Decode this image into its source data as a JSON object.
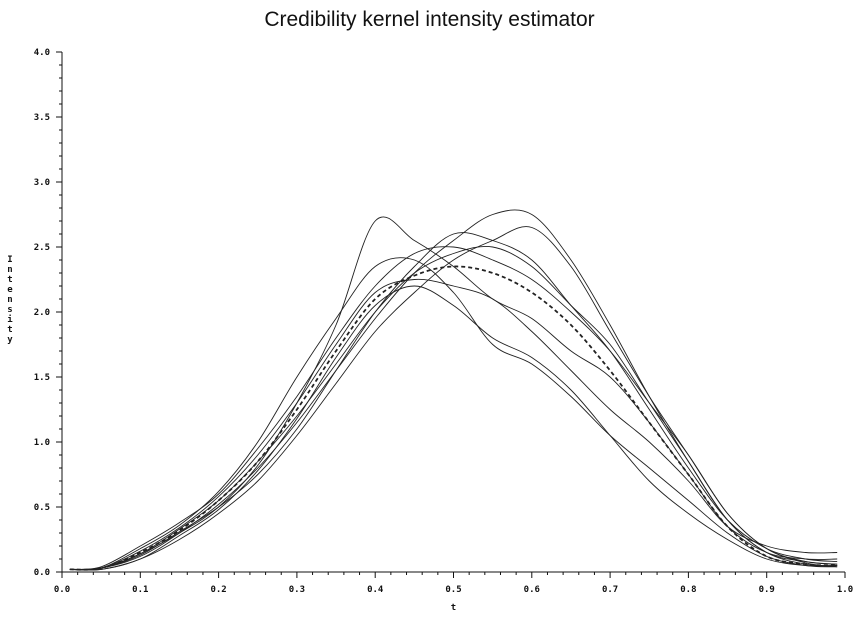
{
  "chart_data": {
    "type": "line",
    "title": "Credibility kernel intensity estimator",
    "xlabel": "t",
    "ylabel": "Intensity",
    "xlim": [
      0.0,
      1.0
    ],
    "ylim": [
      0.0,
      4.0
    ],
    "x_ticks": [
      "0.0",
      "0.1",
      "0.2",
      "0.3",
      "0.4",
      "0.5",
      "0.6",
      "0.7",
      "0.8",
      "0.9",
      "1.0"
    ],
    "y_ticks": [
      "0.0",
      "0.5",
      "1.0",
      "1.5",
      "2.0",
      "2.5",
      "3.0",
      "3.5",
      "4.0"
    ],
    "grid": false,
    "x": [
      0.01,
      0.05,
      0.1,
      0.15,
      0.2,
      0.25,
      0.3,
      0.35,
      0.4,
      0.45,
      0.5,
      0.55,
      0.6,
      0.65,
      0.7,
      0.75,
      0.8,
      0.85,
      0.9,
      0.95,
      0.99
    ],
    "series": [
      {
        "style": "dashed",
        "values": [
          0.02,
          0.03,
          0.15,
          0.32,
          0.55,
          0.85,
          1.25,
          1.7,
          2.1,
          2.28,
          2.35,
          2.3,
          2.15,
          1.9,
          1.55,
          1.15,
          0.75,
          0.35,
          0.12,
          0.06,
          0.05
        ]
      },
      {
        "style": "solid",
        "values": [
          0.02,
          0.03,
          0.14,
          0.3,
          0.5,
          0.82,
          1.3,
          1.9,
          2.7,
          2.55,
          2.35,
          2.1,
          1.95,
          1.7,
          1.5,
          1.15,
          0.75,
          0.35,
          0.15,
          0.1,
          0.1
        ]
      },
      {
        "style": "solid",
        "values": [
          0.02,
          0.04,
          0.2,
          0.38,
          0.6,
          0.95,
          1.35,
          1.8,
          2.2,
          2.45,
          2.5,
          2.4,
          2.25,
          2.0,
          1.7,
          1.3,
          0.9,
          0.45,
          0.18,
          0.08,
          0.06
        ]
      },
      {
        "style": "solid",
        "values": [
          0.02,
          0.02,
          0.1,
          0.28,
          0.48,
          0.78,
          1.18,
          1.65,
          2.05,
          2.2,
          2.05,
          1.8,
          1.65,
          1.4,
          1.05,
          0.7,
          0.45,
          0.25,
          0.1,
          0.05,
          0.05
        ]
      },
      {
        "style": "solid",
        "values": [
          0.02,
          0.03,
          0.12,
          0.3,
          0.52,
          0.8,
          1.15,
          1.55,
          1.95,
          2.3,
          2.55,
          2.75,
          2.75,
          2.4,
          1.9,
          1.35,
          0.85,
          0.4,
          0.15,
          0.08,
          0.06
        ]
      },
      {
        "style": "solid",
        "values": [
          0.02,
          0.03,
          0.16,
          0.34,
          0.58,
          0.9,
          1.3,
          1.75,
          2.15,
          2.25,
          2.2,
          2.1,
          1.85,
          1.55,
          1.25,
          1.0,
          0.7,
          0.35,
          0.2,
          0.15,
          0.15
        ]
      },
      {
        "style": "solid",
        "values": [
          0.02,
          0.02,
          0.1,
          0.25,
          0.45,
          0.7,
          1.05,
          1.45,
          1.85,
          2.15,
          2.4,
          2.55,
          2.65,
          2.35,
          1.85,
          1.35,
          0.9,
          0.45,
          0.18,
          0.07,
          0.04
        ]
      },
      {
        "style": "solid",
        "values": [
          0.02,
          0.03,
          0.18,
          0.36,
          0.62,
          1.0,
          1.5,
          1.95,
          2.35,
          2.4,
          2.15,
          1.75,
          1.6,
          1.35,
          1.05,
          0.8,
          0.55,
          0.3,
          0.12,
          0.05,
          0.04
        ]
      },
      {
        "style": "solid",
        "values": [
          0.02,
          0.03,
          0.14,
          0.33,
          0.55,
          0.85,
          1.2,
          1.6,
          2.0,
          2.3,
          2.45,
          2.5,
          2.35,
          2.05,
          1.75,
          1.3,
          0.85,
          0.4,
          0.15,
          0.06,
          0.05
        ]
      },
      {
        "style": "solid",
        "values": [
          0.02,
          0.03,
          0.13,
          0.31,
          0.5,
          0.75,
          1.1,
          1.55,
          2.0,
          2.35,
          2.6,
          2.55,
          2.4,
          2.05,
          1.7,
          1.25,
          0.8,
          0.4,
          0.18,
          0.1,
          0.08
        ]
      }
    ]
  }
}
